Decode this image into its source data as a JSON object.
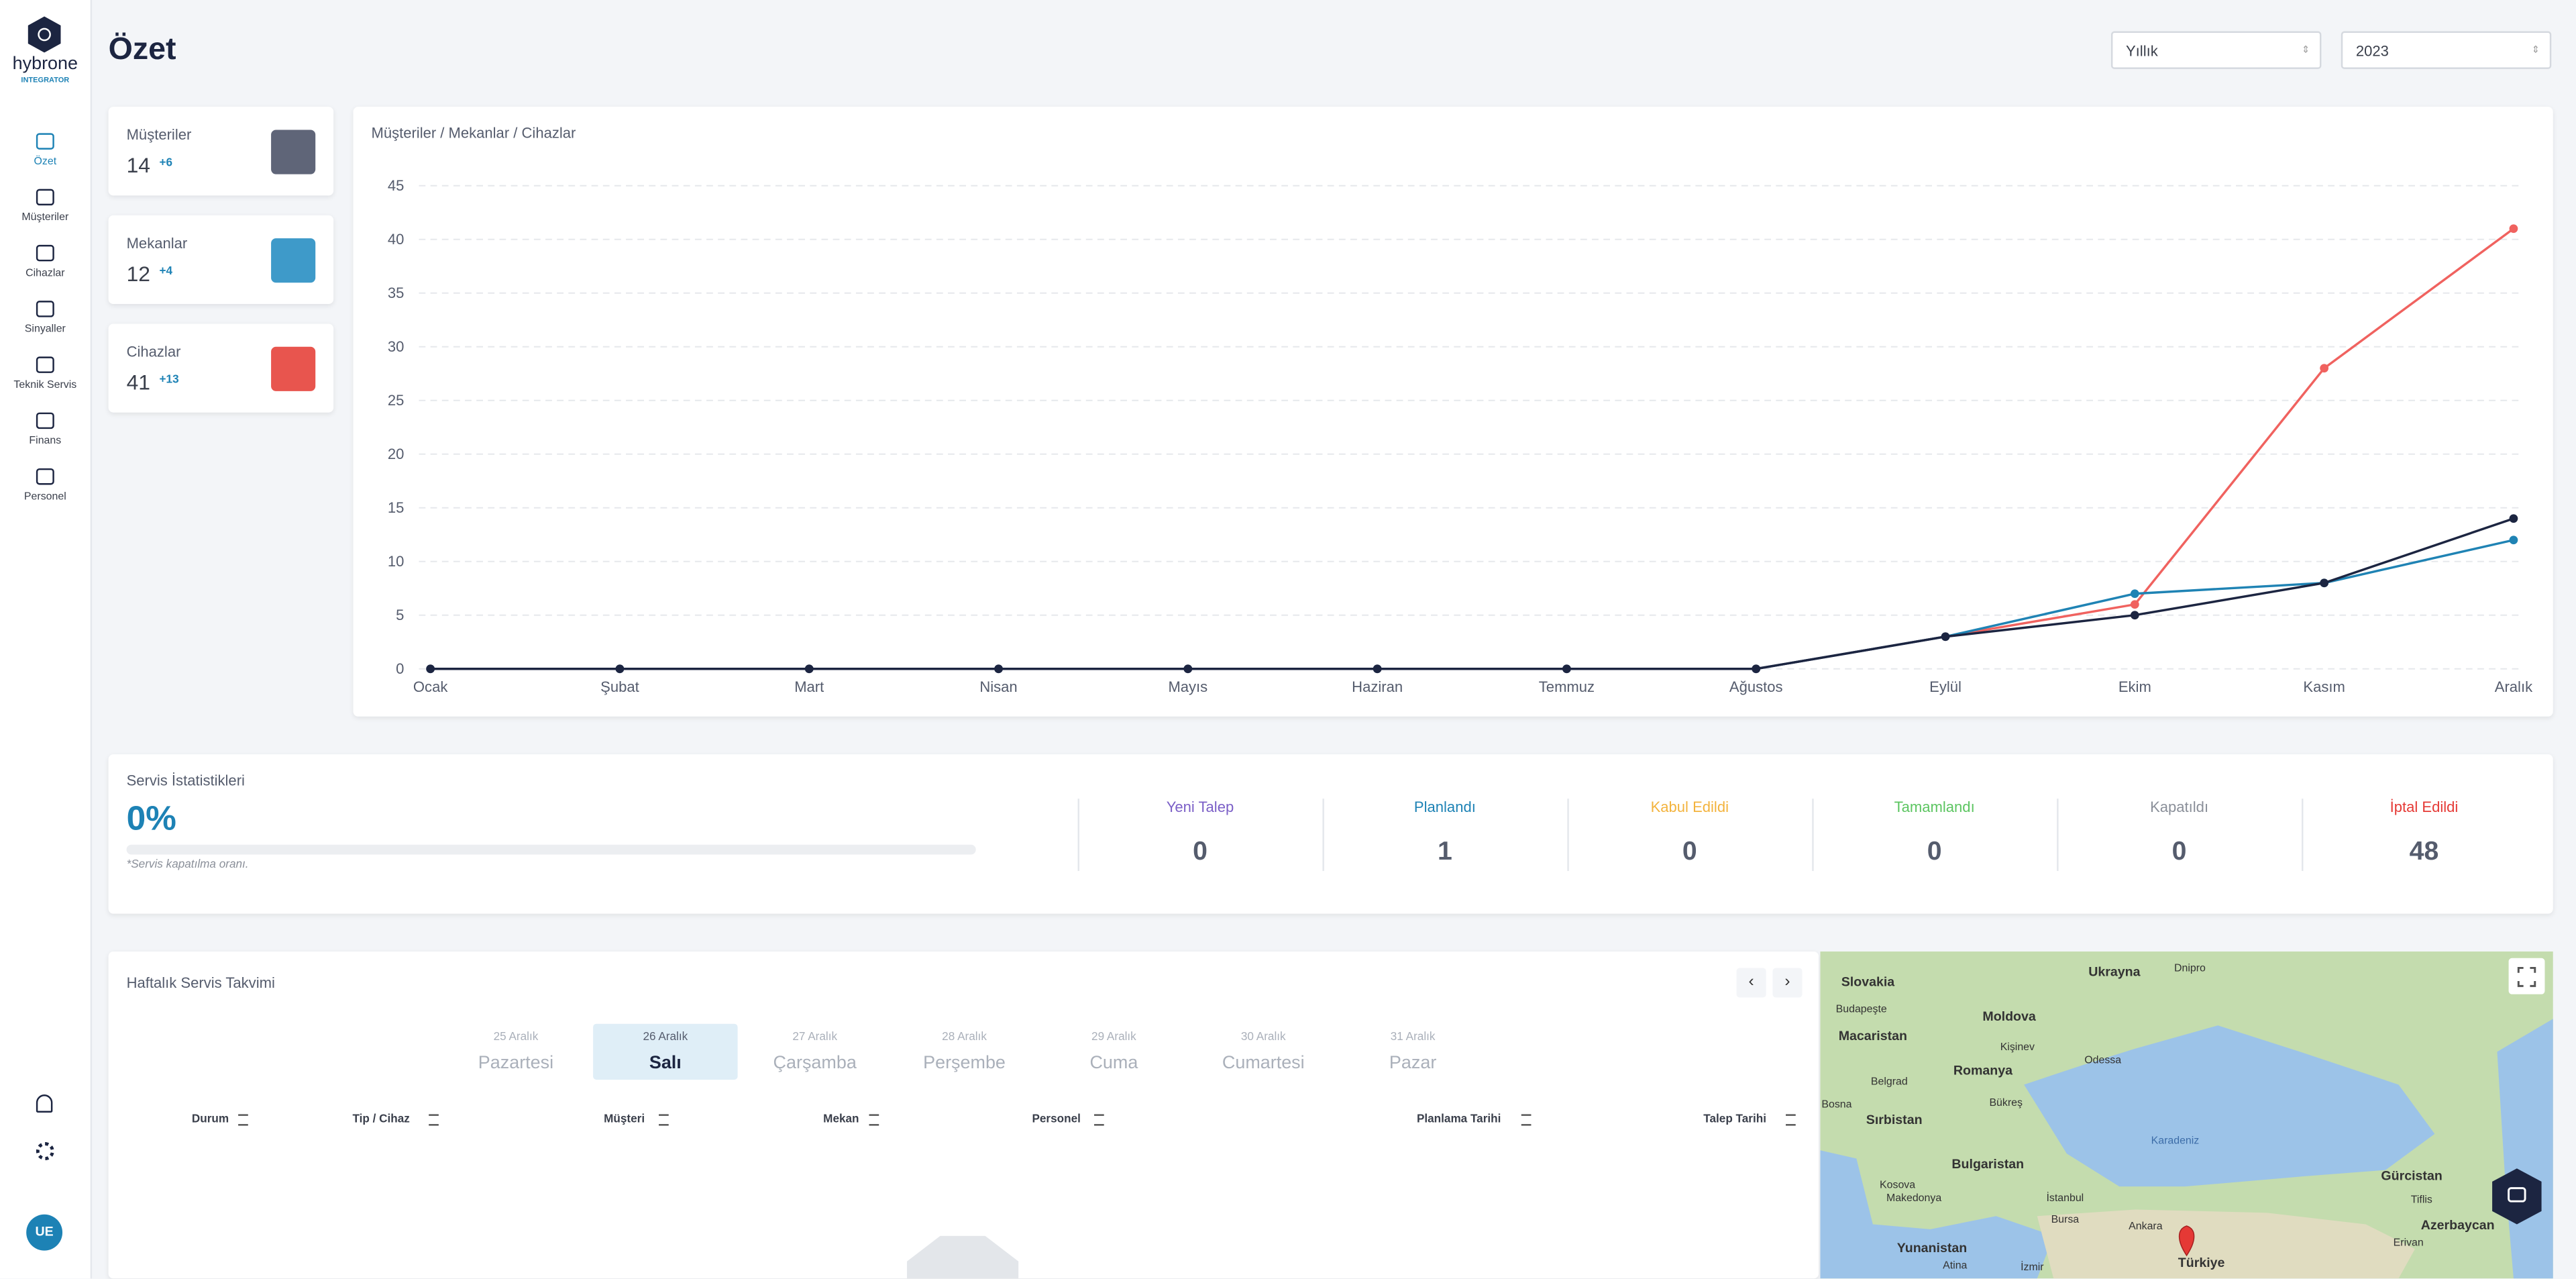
{
  "sidebar": {
    "brand": "hybrone",
    "brand_sub": "INTEGRATOR",
    "nav": [
      "Özet",
      "Müşteriler",
      "Cihazlar",
      "Sinyaller",
      "Teknik Servis",
      "Finans",
      "Personel"
    ],
    "avatar": "UE"
  },
  "header": {
    "title": "Özet",
    "filters": [
      "Yıllık",
      "2023"
    ]
  },
  "stats": [
    {
      "label": "Müşteriler",
      "value": 14,
      "delta": "+6"
    },
    {
      "label": "Mekanlar",
      "value": 12,
      "delta": "+4"
    },
    {
      "label": "Cihazlar",
      "value": 41,
      "delta": "+13"
    }
  ],
  "chart_data": {
    "type": "line",
    "title": "Müşteriler / Mekanlar / Cihazlar",
    "categories": [
      "Ocak",
      "Şubat",
      "Mart",
      "Nisan",
      "Mayıs",
      "Haziran",
      "Temmuz",
      "Ağustos",
      "Eylül",
      "Ekim",
      "Kasım",
      "Aralık"
    ],
    "series": [
      {
        "color": "#f0625f",
        "values": [
          0,
          0,
          0,
          0,
          0,
          0,
          0,
          0,
          3,
          6,
          28,
          41
        ]
      },
      {
        "color": "#1f83b4",
        "values": [
          0,
          0,
          0,
          0,
          0,
          0,
          0,
          0,
          3,
          7,
          8,
          12
        ]
      },
      {
        "color": "#1c2541",
        "values": [
          0,
          0,
          0,
          0,
          0,
          0,
          0,
          0,
          3,
          5,
          8,
          14
        ]
      }
    ],
    "ylim": [
      0,
      45
    ],
    "yticks": [
      0,
      5,
      10,
      15,
      20,
      25,
      30,
      35,
      40,
      45
    ],
    "grid": true
  },
  "service": {
    "title": "Servis İstatistikleri",
    "rate": "0%",
    "note": "*Servis kapatılma oranı.",
    "statuses": [
      {
        "label": "Yeni Talep",
        "value": 0,
        "color": "#7b5fc7"
      },
      {
        "label": "Planlandı",
        "value": 1,
        "color": "#1d82b5"
      },
      {
        "label": "Kabul Edildi",
        "value": 0,
        "color": "#f3b33d"
      },
      {
        "label": "Tamamlandı",
        "value": 0,
        "color": "#5cc561"
      },
      {
        "label": "Kapatıldı",
        "value": 0,
        "color": "#8a8f99"
      },
      {
        "label": "İptal Edildi",
        "value": 48,
        "color": "#e53935"
      }
    ]
  },
  "calendar": {
    "title": "Haftalık Servis Takvimi",
    "days": [
      {
        "date": "25 Aralık",
        "name": "Pazartesi"
      },
      {
        "date": "26 Aralık",
        "name": "Salı"
      },
      {
        "date": "27 Aralık",
        "name": "Çarşamba"
      },
      {
        "date": "28 Aralık",
        "name": "Perşembe"
      },
      {
        "date": "29 Aralık",
        "name": "Cuma"
      },
      {
        "date": "30 Aralık",
        "name": "Cumartesi"
      },
      {
        "date": "31 Aralık",
        "name": "Pazar"
      }
    ],
    "columns": [
      "Durum",
      "Tip / Cihaz",
      "Müşteri",
      "Mekan",
      "Personel",
      "Planlama Tarihi",
      "Talep Tarihi"
    ]
  },
  "map": {
    "labels": [
      "Slovakia",
      "Ukrayna",
      "Dnipro",
      "Budapeşte",
      "Macaristan",
      "Moldova",
      "Kişinev",
      "Romanya",
      "Odessa",
      "Belgrad",
      "Bükreş",
      "Sırbistan",
      "Bosna",
      "Bulgaristan",
      "Karadeniz",
      "Kosova",
      "Makedonya",
      "İstanbul",
      "Gürcistan",
      "Tiflis",
      "Azerbaycan",
      "Ankara",
      "Bursa",
      "Yunanistan",
      "Türkiye",
      "Erivan",
      "Atina",
      "İzmir"
    ]
  }
}
